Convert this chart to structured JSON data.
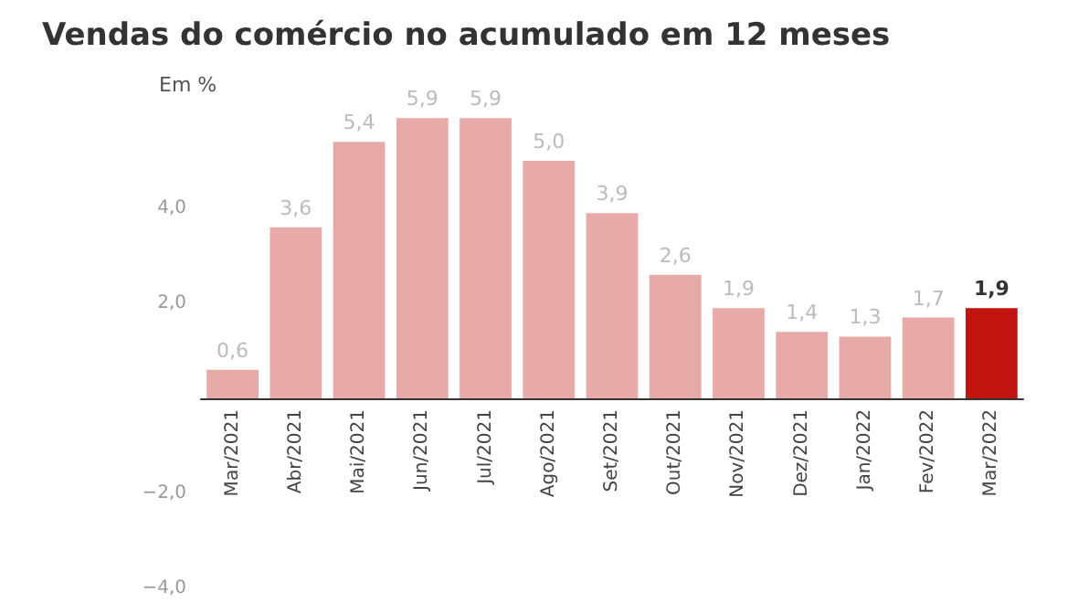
{
  "chart_data": {
    "type": "bar",
    "title": "Vendas do comércio no acumulado em 12 meses",
    "ylabel": "Em %",
    "categories": [
      "Mar/2021",
      "Abr/2021",
      "Mai/2021",
      "Jun/2021",
      "Jul/2021",
      "Ago/2021",
      "Set/2021",
      "Out/2021",
      "Nov/2021",
      "Dez/2021",
      "Jan/2022",
      "Fev/2022",
      "Mar/2022"
    ],
    "values": [
      0.6,
      3.6,
      5.4,
      5.9,
      5.9,
      5.0,
      3.9,
      2.6,
      1.9,
      1.4,
      1.3,
      1.7,
      1.9
    ],
    "colors": [
      "#e8aaa6",
      "#e8aaa6",
      "#e8aaa6",
      "#e8aaa6",
      "#e8aaa6",
      "#e8aaa6",
      "#e8aaa6",
      "#e8aaa6",
      "#e8aaa6",
      "#e8aaa6",
      "#e8aaa6",
      "#e8aaa6",
      "#c3150f"
    ],
    "value_labels": [
      "0,6",
      "3,6",
      "5,4",
      "5,9",
      "5,9",
      "5,0",
      "3,9",
      "2,6",
      "1,9",
      "1,4",
      "1,3",
      "1,7",
      "1,9"
    ],
    "ylim": [
      -4,
      6
    ],
    "yticks": [
      {
        "value": -4,
        "label": "−4,0"
      },
      {
        "value": -2,
        "label": "−2,0"
      },
      {
        "value": 0,
        "label": null
      },
      {
        "value": 2,
        "label": "2,0"
      },
      {
        "value": 4,
        "label": "4,0"
      }
    ]
  }
}
